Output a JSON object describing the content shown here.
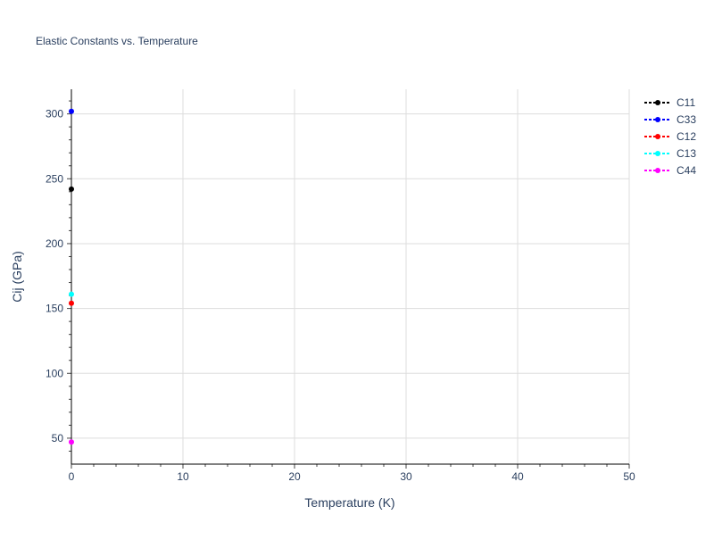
{
  "chart_data": {
    "type": "scatter",
    "title": "Elastic Constants vs. Temperature",
    "xlabel": "Temperature (K)",
    "ylabel": "Cij (GPa)",
    "xlim": [
      0,
      50
    ],
    "ylim": [
      30,
      319
    ],
    "xticks": [
      0,
      10,
      20,
      30,
      40,
      50
    ],
    "yticks": [
      50,
      100,
      150,
      200,
      250,
      300
    ],
    "grid": true,
    "legend_position": "top-right",
    "series": [
      {
        "name": "C11",
        "color": "#000000",
        "x": [
          0
        ],
        "y": [
          242
        ]
      },
      {
        "name": "C33",
        "color": "#0000ff",
        "x": [
          0
        ],
        "y": [
          302
        ]
      },
      {
        "name": "C12",
        "color": "#ff0000",
        "x": [
          0
        ],
        "y": [
          154
        ]
      },
      {
        "name": "C13",
        "color": "#00ffff",
        "x": [
          0
        ],
        "y": [
          161
        ]
      },
      {
        "name": "C44",
        "color": "#ff00ff",
        "x": [
          0
        ],
        "y": [
          47
        ]
      }
    ]
  }
}
